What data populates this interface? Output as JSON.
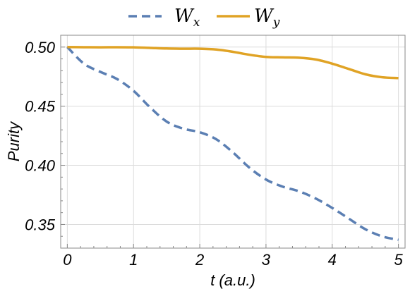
{
  "chart_data": {
    "type": "line",
    "xlabel": "t (a.u.)",
    "ylabel": "Purity",
    "xlim": [
      -0.1,
      5.1
    ],
    "ylim": [
      0.33,
      0.51
    ],
    "xticks": [
      0,
      1,
      2,
      3,
      4,
      5
    ],
    "xtick_labels": [
      "0",
      "1",
      "2",
      "3",
      "4",
      "5"
    ],
    "yticks": [
      0.35,
      0.4,
      0.45,
      0.5
    ],
    "ytick_labels": [
      "0.35",
      "0.40",
      "0.45",
      "0.50"
    ],
    "grid": true,
    "legend_position": "top-center",
    "series": [
      {
        "name": "W",
        "subscript": "x",
        "color": "#5b7fb3",
        "dash": "dashed",
        "x": [
          0,
          0.25,
          0.5,
          0.75,
          1.0,
          1.25,
          1.5,
          1.75,
          2.0,
          2.25,
          2.5,
          2.75,
          3.0,
          3.25,
          3.5,
          3.75,
          4.0,
          4.25,
          4.5,
          4.75,
          5.0
        ],
        "y": [
          0.5,
          0.486,
          0.479,
          0.473,
          0.463,
          0.449,
          0.437,
          0.431,
          0.428,
          0.422,
          0.411,
          0.398,
          0.388,
          0.382,
          0.378,
          0.372,
          0.364,
          0.355,
          0.346,
          0.34,
          0.337
        ]
      },
      {
        "name": "W",
        "subscript": "y",
        "color": "#e0a325",
        "dash": "solid",
        "x": [
          0,
          0.25,
          0.5,
          0.75,
          1.0,
          1.25,
          1.5,
          1.75,
          2.0,
          2.25,
          2.5,
          2.75,
          3.0,
          3.25,
          3.5,
          3.75,
          4.0,
          4.25,
          4.5,
          4.75,
          5.0
        ],
        "y": [
          0.5,
          0.4999,
          0.4998,
          0.4999,
          0.4998,
          0.4993,
          0.4988,
          0.4986,
          0.4986,
          0.4979,
          0.496,
          0.4935,
          0.4917,
          0.4913,
          0.491,
          0.4895,
          0.486,
          0.4815,
          0.477,
          0.4745,
          0.4738
        ]
      }
    ]
  }
}
